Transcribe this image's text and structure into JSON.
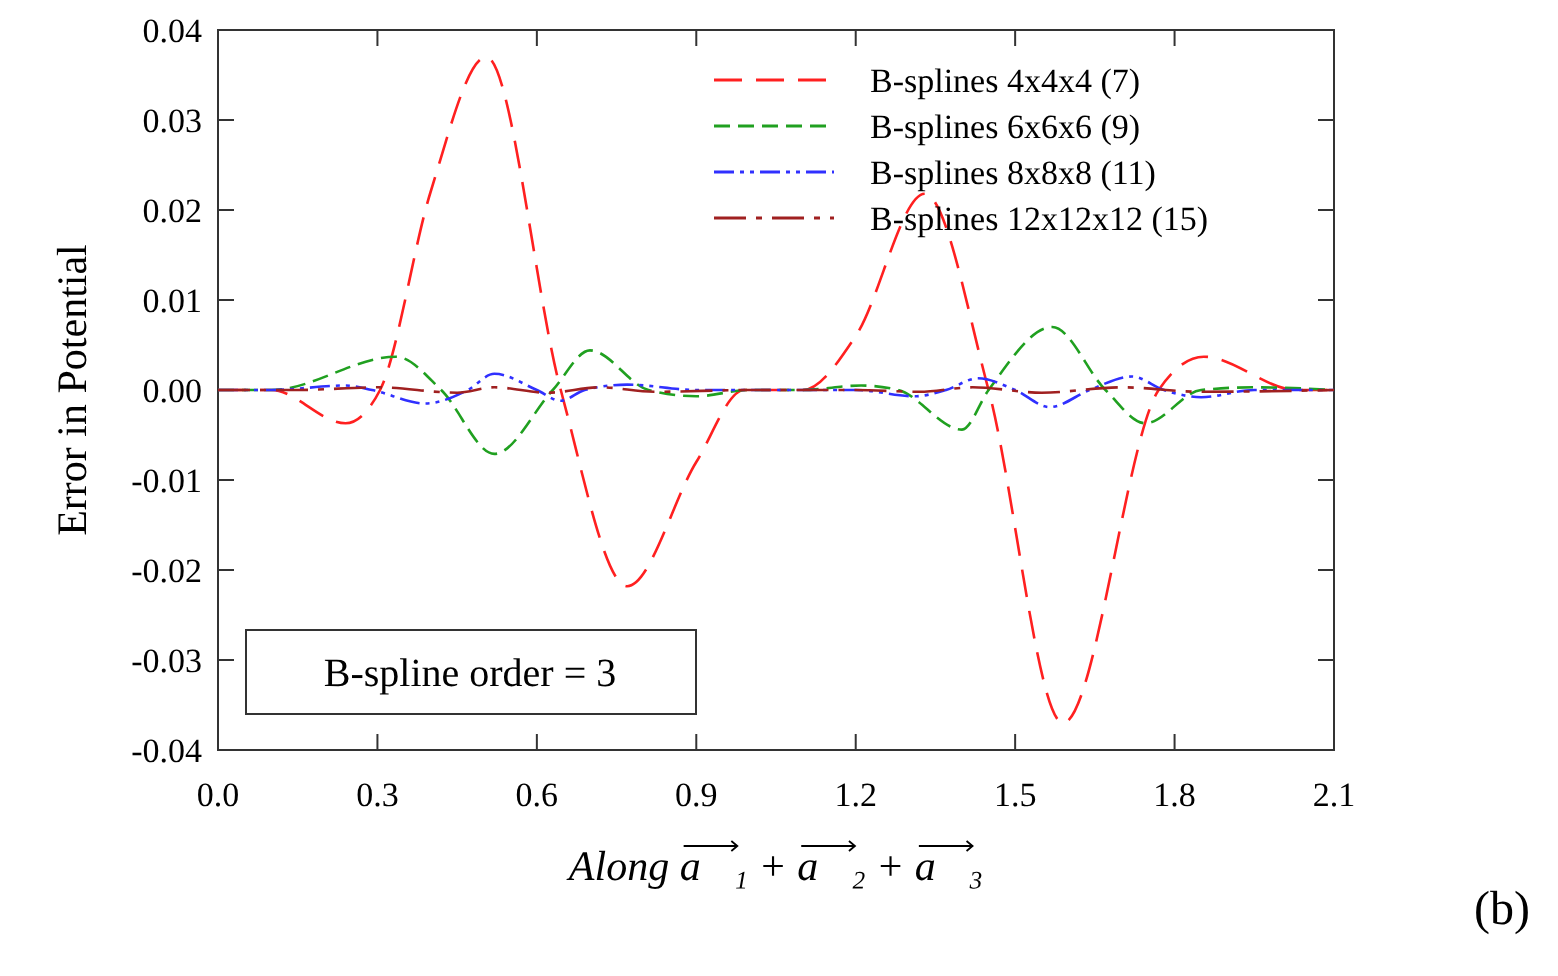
{
  "chart_data": {
    "type": "line",
    "xlabel": "Along a⃗₁ + a⃗₂ + a⃗₃",
    "ylabel": "Error in Potential",
    "xlim": [
      0,
      2.1
    ],
    "ylim": [
      -0.04,
      0.04
    ],
    "xticks": [
      {
        "value": 0,
        "label": "0.0"
      },
      {
        "value": 0.3,
        "label": "0.3"
      },
      {
        "value": 0.6,
        "label": "0.6"
      },
      {
        "value": 0.9,
        "label": "0.9"
      },
      {
        "value": 1.2,
        "label": "1.2"
      },
      {
        "value": 1.5,
        "label": "1.5"
      },
      {
        "value": 1.8,
        "label": "1.8"
      },
      {
        "value": 2.1,
        "label": "2.1"
      }
    ],
    "yticks": [
      {
        "value": -0.04,
        "label": "-0.04"
      },
      {
        "value": -0.03,
        "label": "-0.03"
      },
      {
        "value": -0.02,
        "label": "-0.02"
      },
      {
        "value": -0.01,
        "label": "-0.01"
      },
      {
        "value": 0,
        "label": "0.00"
      },
      {
        "value": 0.01,
        "label": "0.01"
      },
      {
        "value": 0.02,
        "label": "0.02"
      },
      {
        "value": 0.03,
        "label": "0.03"
      },
      {
        "value": 0.04,
        "label": "0.04"
      }
    ],
    "grid": false,
    "legend": "top right",
    "marker": "none",
    "annotations": [
      "B-spline order = 3",
      "(b)"
    ],
    "series": [
      {
        "name": "B-splines 4x4x4 (7)",
        "color": "#ff2020",
        "line_style": "dashed",
        "x": [
          0,
          0.1,
          0.24,
          0.305,
          0.4,
          0.505,
          0.645,
          0.77,
          0.9,
          0.99,
          1.1,
          1.2,
          1.33,
          1.45,
          1.59,
          1.77,
          1.855,
          2.03,
          2.1
        ],
        "values": [
          0,
          0,
          -0.0037,
          0,
          0.022,
          0.037,
          0,
          -0.0218,
          -0.008,
          0,
          0,
          0.006,
          0.0218,
          0,
          -0.037,
          0,
          0.0037,
          0,
          0
        ]
      },
      {
        "name": "B-splines 6x6x6 (9)",
        "color": "#20a020",
        "line_style": "dashed",
        "x": [
          0,
          0.1,
          0.335,
          0.42,
          0.52,
          0.63,
          0.7,
          0.81,
          0.9,
          1.0,
          1.1,
          1.21,
          1.28,
          1.4,
          1.45,
          1.57,
          1.67,
          1.745,
          1.85,
          1.95,
          2.1
        ],
        "values": [
          0,
          0,
          0.0037,
          0,
          -0.0071,
          0,
          0.0044,
          0,
          -0.0007,
          0,
          0,
          0.0005,
          0,
          -0.0044,
          0,
          0.007,
          0,
          -0.0037,
          0,
          0.0003,
          0
        ]
      },
      {
        "name": "B-splines 8x8x8 (11)",
        "color": "#3030ff",
        "line_style": "dashed",
        "x": [
          0,
          0.1,
          0.24,
          0.29,
          0.39,
          0.47,
          0.52,
          0.6,
          0.645,
          0.69,
          0.77,
          0.9,
          1.2,
          1.31,
          1.37,
          1.43,
          1.5,
          1.565,
          1.64,
          1.72,
          1.78,
          1.85,
          1.95,
          2.1
        ],
        "values": [
          0,
          0,
          0.0005,
          0,
          -0.0015,
          0,
          0.0018,
          0,
          -0.0012,
          0,
          0.0006,
          0,
          0,
          -0.0007,
          0,
          0.0013,
          0,
          -0.0019,
          0,
          0.0015,
          0,
          -0.0008,
          0,
          0
        ]
      },
      {
        "name": "B-splines 12x12x12 (15)",
        "color": "#a02020",
        "line_style": "dashed",
        "x": [
          0,
          0.15,
          0.3,
          0.45,
          0.52,
          0.62,
          0.72,
          0.82,
          1.0,
          1.2,
          1.32,
          1.42,
          1.55,
          1.7,
          1.85,
          2.1
        ],
        "values": [
          0,
          0,
          0.0003,
          -0.0003,
          0.0003,
          -0.0003,
          0.0003,
          -0.0002,
          0,
          0,
          -0.0002,
          0.0003,
          -0.0003,
          0.0003,
          -0.0002,
          0
        ]
      }
    ]
  }
}
